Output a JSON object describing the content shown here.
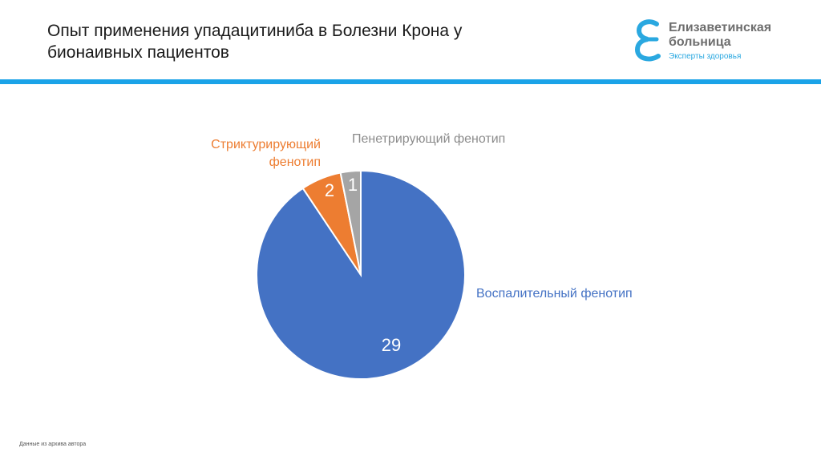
{
  "title": {
    "line1": "Опыт применения упадацитиниба в Болезни Крона у",
    "line2": "бионаивных пациентов"
  },
  "logo": {
    "icon": "e-letter-logo-icon",
    "name_line1": "Елизаветинская",
    "name_line2": "больница",
    "tagline": "Эксперты здоровья",
    "colors": {
      "mark": "#2aa8e0",
      "name": "#6e6e6e"
    }
  },
  "accent_color": "#1aa3e8",
  "chart_data": {
    "type": "pie",
    "start_angle_deg": 0,
    "direction": "clockwise",
    "slices": [
      {
        "label": "Воспалительный фенотип",
        "value": 29,
        "color": "#4472c4"
      },
      {
        "label": "Стриктурирующий фенотип",
        "value": 2,
        "color": "#ed7d31"
      },
      {
        "label": "Пенетрирующий фенотип",
        "value": 1,
        "color": "#a5a5a5"
      }
    ],
    "label_lines": {
      "strict_line1": "Стриктурирующий",
      "strict_line2": "фенотип"
    }
  },
  "footnote": "Данные из архива автора"
}
